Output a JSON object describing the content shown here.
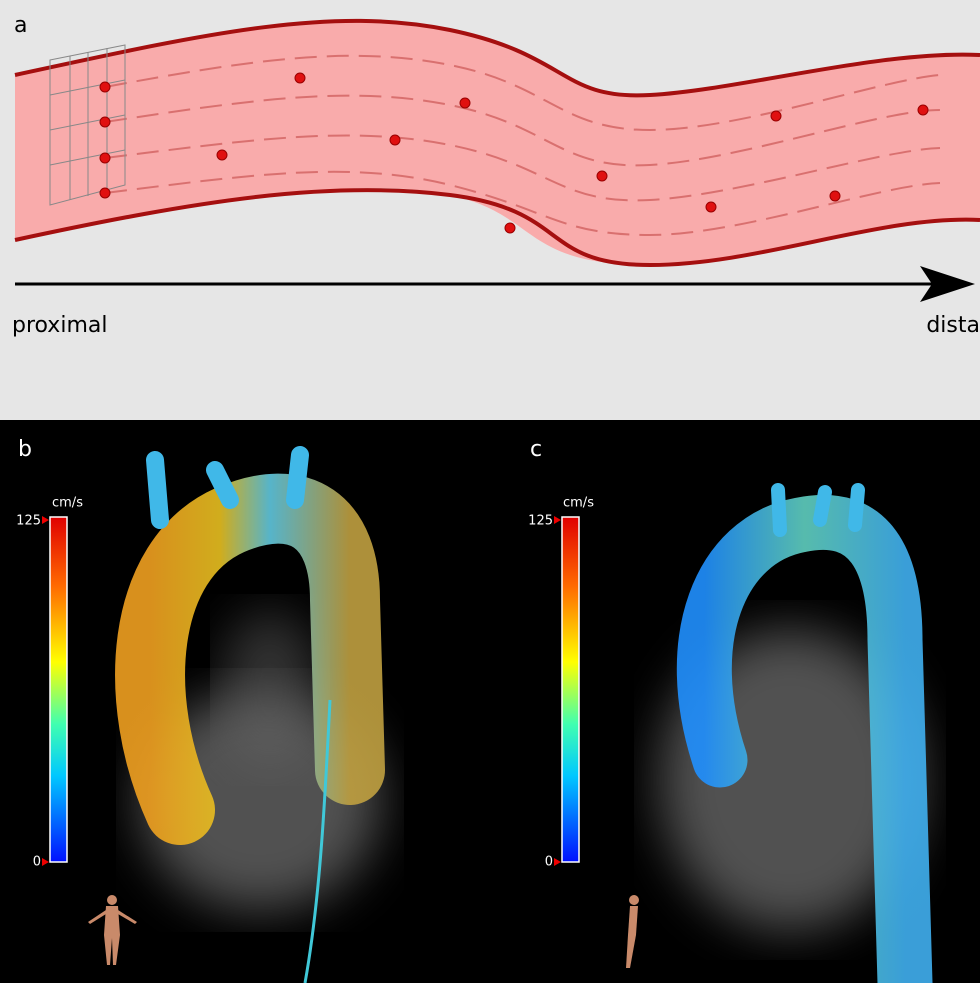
{
  "panels": {
    "a": {
      "label": "a",
      "proximal": "proximal",
      "distal": "dista"
    },
    "b": {
      "label": "b",
      "colorbar": {
        "unit": "cm/s",
        "max": "125",
        "min": "0"
      }
    },
    "c": {
      "label": "c",
      "colorbar": {
        "unit": "cm/s",
        "max": "125",
        "min": "0"
      }
    }
  }
}
